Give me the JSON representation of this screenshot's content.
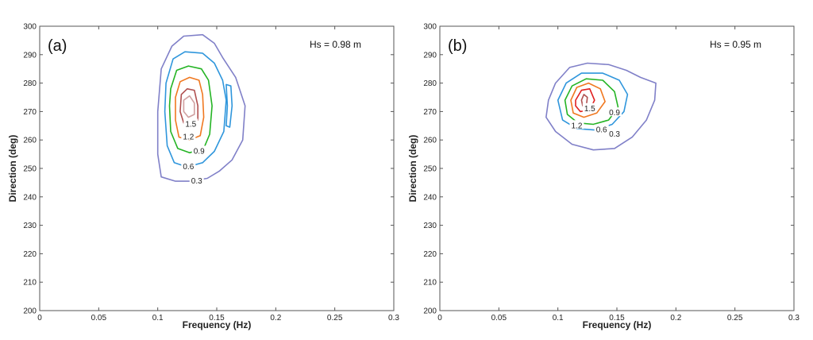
{
  "chart_data": [
    {
      "type": "contour",
      "panel_label": "(a)",
      "annotation": "Hs = 0.98 m",
      "xlabel": "Frequency (Hz)",
      "ylabel": "Direction (deg)",
      "xlim": [
        0,
        0.3
      ],
      "ylim": [
        200,
        300
      ],
      "xticks": [
        0,
        0.05,
        0.1,
        0.15,
        0.2,
        0.25,
        0.3
      ],
      "xtick_labels": [
        "0",
        "0.05",
        "0.1",
        "0.15",
        "0.2",
        "0.25",
        "0.3"
      ],
      "yticks": [
        200,
        210,
        220,
        230,
        240,
        250,
        260,
        270,
        280,
        290,
        300
      ],
      "grid": false,
      "levels": [
        {
          "level": 0.3,
          "label": "0.3",
          "color": "#8080c8",
          "label_at": [
            0.133,
            245.5
          ],
          "points": [
            [
              0.103,
              285
            ],
            [
              0.112,
              293
            ],
            [
              0.122,
              296.5
            ],
            [
              0.138,
              297
            ],
            [
              0.148,
              294
            ],
            [
              0.155,
              289
            ],
            [
              0.166,
              282
            ],
            [
              0.174,
              272
            ],
            [
              0.172,
              260
            ],
            [
              0.163,
              253
            ],
            [
              0.152,
              249
            ],
            [
              0.142,
              246.5
            ],
            [
              0.128,
              245.5
            ],
            [
              0.115,
              245.5
            ],
            [
              0.103,
              247
            ],
            [
              0.1,
              255
            ],
            [
              0.1,
              270
            ]
          ]
        },
        {
          "level": 0.6,
          "label": "0.6",
          "color": "#2f96dc",
          "label_at": [
            0.126,
            250.5
          ],
          "points": [
            [
              0.107,
              280
            ],
            [
              0.113,
              288.5
            ],
            [
              0.123,
              291
            ],
            [
              0.138,
              290.5
            ],
            [
              0.148,
              287
            ],
            [
              0.155,
              281
            ],
            [
              0.158,
              274
            ],
            [
              0.156,
              263
            ],
            [
              0.148,
              256
            ],
            [
              0.138,
              252
            ],
            [
              0.125,
              250.5
            ],
            [
              0.114,
              252
            ],
            [
              0.108,
              258
            ],
            [
              0.106,
              270
            ]
          ]
        },
        {
          "level": 0.6,
          "label": "",
          "color": "#2f96dc",
          "label_at": null,
          "points": [
            [
              0.158,
              279.5
            ],
            [
              0.162,
              279
            ],
            [
              0.163,
              272
            ],
            [
              0.161,
              264.5
            ],
            [
              0.158,
              265
            ],
            [
              0.159,
              272
            ]
          ]
        },
        {
          "level": 0.9,
          "label": "0.9",
          "color": "#24b424",
          "label_at": [
            0.135,
            256
          ],
          "points": [
            [
              0.111,
              278
            ],
            [
              0.116,
              284.5
            ],
            [
              0.126,
              286
            ],
            [
              0.137,
              285
            ],
            [
              0.143,
              281
            ],
            [
              0.146,
              272
            ],
            [
              0.144,
              262
            ],
            [
              0.139,
              257
            ],
            [
              0.127,
              255.5
            ],
            [
              0.117,
              257
            ],
            [
              0.111,
              263
            ],
            [
              0.11,
              272
            ]
          ]
        },
        {
          "level": 1.2,
          "label": "1.2",
          "color": "#f07820",
          "label_at": [
            0.126,
            261
          ],
          "points": [
            [
              0.115,
              275
            ],
            [
              0.119,
              280.5
            ],
            [
              0.127,
              282
            ],
            [
              0.135,
              281
            ],
            [
              0.138,
              276
            ],
            [
              0.139,
              268
            ],
            [
              0.136,
              261.5
            ],
            [
              0.127,
              260
            ],
            [
              0.118,
              261
            ],
            [
              0.115,
              267
            ]
          ]
        },
        {
          "level": 1.5,
          "label": "1.5",
          "color": "#b05050",
          "label_at": [
            0.128,
            265.5
          ],
          "points": [
            [
              0.12,
              276
            ],
            [
              0.125,
              278
            ],
            [
              0.131,
              277.5
            ],
            [
              0.134,
              272
            ],
            [
              0.134,
              267
            ],
            [
              0.129,
              265
            ],
            [
              0.122,
              266
            ],
            [
              0.119,
              270
            ]
          ]
        },
        {
          "level": 1.8,
          "label": "",
          "color": "#d0a0a0",
          "label_at": null,
          "points": [
            [
              0.122,
              274
            ],
            [
              0.127,
              275.5
            ],
            [
              0.131,
              273
            ],
            [
              0.131,
              269
            ],
            [
              0.126,
              268
            ],
            [
              0.122,
              270
            ]
          ]
        }
      ]
    },
    {
      "type": "contour",
      "panel_label": "(b)",
      "annotation": "Hs = 0.95 m",
      "xlabel": "Frequency (Hz)",
      "ylabel": "Direction (deg)",
      "xlim": [
        0,
        0.3
      ],
      "ylim": [
        200,
        300
      ],
      "xticks": [
        0,
        0.05,
        0.1,
        0.15,
        0.2,
        0.25,
        0.3
      ],
      "xtick_labels": [
        "0",
        "0.05",
        "0.1",
        "0.15",
        "0.2",
        "0.25",
        "0.3"
      ],
      "yticks": [
        200,
        210,
        220,
        230,
        240,
        250,
        260,
        270,
        280,
        290,
        300
      ],
      "grid": false,
      "levels": [
        {
          "level": 0.3,
          "label": "0.3",
          "color": "#8080c8",
          "label_at": [
            0.148,
            262
          ],
          "points": [
            [
              0.092,
              274
            ],
            [
              0.098,
              280
            ],
            [
              0.11,
              285.5
            ],
            [
              0.125,
              287
            ],
            [
              0.143,
              286.5
            ],
            [
              0.158,
              284.5
            ],
            [
              0.17,
              282
            ],
            [
              0.183,
              280
            ],
            [
              0.182,
              274
            ],
            [
              0.175,
              267
            ],
            [
              0.163,
              261
            ],
            [
              0.148,
              257
            ],
            [
              0.13,
              256.5
            ],
            [
              0.112,
              258.5
            ],
            [
              0.098,
              263
            ],
            [
              0.09,
              268
            ]
          ]
        },
        {
          "level": 0.6,
          "label": "0.6",
          "color": "#2f96dc",
          "label_at": [
            0.137,
            263.5
          ],
          "points": [
            [
              0.1,
              274
            ],
            [
              0.107,
              280
            ],
            [
              0.12,
              283.5
            ],
            [
              0.138,
              283.5
            ],
            [
              0.152,
              281
            ],
            [
              0.159,
              276
            ],
            [
              0.156,
              270
            ],
            [
              0.146,
              265.5
            ],
            [
              0.132,
              263.5
            ],
            [
              0.116,
              264
            ],
            [
              0.104,
              267
            ]
          ]
        },
        {
          "level": 0.9,
          "label": "0.9",
          "color": "#24b424",
          "label_at": [
            0.148,
            269.5
          ],
          "points": [
            [
              0.106,
              274
            ],
            [
              0.112,
              279
            ],
            [
              0.124,
              281.5
            ],
            [
              0.138,
              281
            ],
            [
              0.148,
              277
            ],
            [
              0.151,
              271.5
            ],
            [
              0.143,
              267
            ],
            [
              0.13,
              265.5
            ],
            [
              0.117,
              266
            ],
            [
              0.108,
              269
            ]
          ]
        },
        {
          "level": 1.2,
          "label": "1.2",
          "color": "#f07820",
          "label_at": [
            0.116,
            265
          ],
          "points": [
            [
              0.111,
              274
            ],
            [
              0.116,
              278.5
            ],
            [
              0.126,
              280
            ],
            [
              0.136,
              278
            ],
            [
              0.14,
              273.5
            ],
            [
              0.133,
              269.5
            ],
            [
              0.122,
              268
            ],
            [
              0.113,
              269.5
            ]
          ]
        },
        {
          "level": 1.5,
          "label": "1.5",
          "color": "#e02020",
          "label_at": [
            0.127,
            271
          ],
          "points": [
            [
              0.115,
              274
            ],
            [
              0.12,
              277.5
            ],
            [
              0.127,
              278
            ],
            [
              0.131,
              274
            ],
            [
              0.127,
              270.5
            ],
            [
              0.119,
              270
            ],
            [
              0.115,
              272
            ]
          ]
        },
        {
          "level": 1.8,
          "label": "",
          "color": "#b05050",
          "label_at": null,
          "points": [
            [
              0.12,
              274
            ],
            [
              0.122,
              276
            ],
            [
              0.125,
              275
            ],
            [
              0.124,
              271.5
            ],
            [
              0.121,
              272
            ]
          ]
        }
      ]
    }
  ]
}
